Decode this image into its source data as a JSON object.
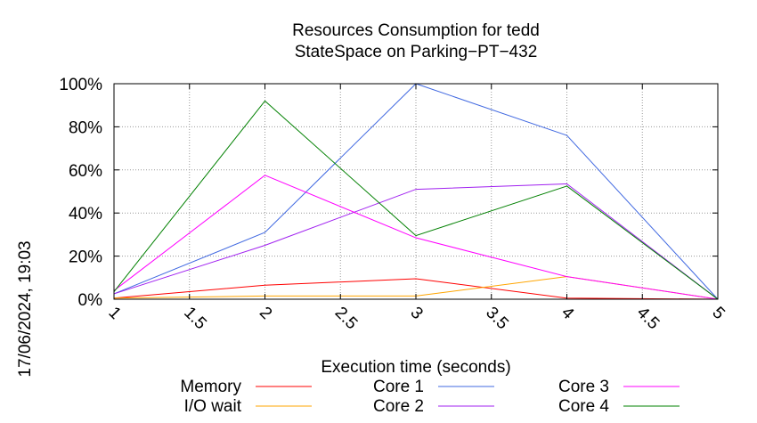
{
  "chart_data": {
    "type": "line",
    "title_line1": "Resources Consumption for tedd",
    "title_line2": "StateSpace on Parking−PT−432",
    "xlabel": "Execution time (seconds)",
    "ylabel": "",
    "side_label": "17/06/2024, 19:03",
    "xlim": [
      1,
      5
    ],
    "ylim": [
      0,
      100
    ],
    "x_ticks": [
      1,
      1.5,
      2,
      2.5,
      3,
      3.5,
      4,
      4.5,
      5
    ],
    "x_tick_labels": [
      "1",
      "1.5",
      "2",
      "2.5",
      "3",
      "3.5",
      "4",
      "4.5",
      "5"
    ],
    "y_ticks": [
      0,
      20,
      40,
      60,
      80,
      100
    ],
    "y_tick_labels": [
      "0%",
      "20%",
      "40%",
      "60%",
      "80%",
      "100%"
    ],
    "grid": true,
    "legend_position": "bottom",
    "series": [
      {
        "name": "Memory",
        "color": "#ff0000",
        "x": [
          1,
          2,
          3,
          4,
          5
        ],
        "values": [
          0.5,
          6.5,
          9.5,
          0.5,
          0
        ]
      },
      {
        "name": "I/O wait",
        "color": "#ffa500",
        "x": [
          1,
          2,
          3,
          4,
          5
        ],
        "values": [
          0.5,
          1.5,
          1.5,
          10.5,
          0
        ]
      },
      {
        "name": "Core 1",
        "color": "#4169e1",
        "x": [
          1,
          2,
          3,
          4,
          5
        ],
        "values": [
          2.5,
          31,
          100,
          76,
          0
        ]
      },
      {
        "name": "Core 2",
        "color": "#a020f0",
        "x": [
          1,
          2,
          3,
          4,
          5
        ],
        "values": [
          2.5,
          25,
          51,
          53.5,
          0
        ]
      },
      {
        "name": "Core 3",
        "color": "#ff00ff",
        "x": [
          1,
          2,
          3,
          4,
          5
        ],
        "values": [
          4,
          57.5,
          28.5,
          10.5,
          0
        ]
      },
      {
        "name": "Core 4",
        "color": "#008000",
        "x": [
          1,
          2,
          3,
          4,
          5
        ],
        "values": [
          3.5,
          92,
          29.5,
          52.5,
          0
        ]
      }
    ]
  }
}
